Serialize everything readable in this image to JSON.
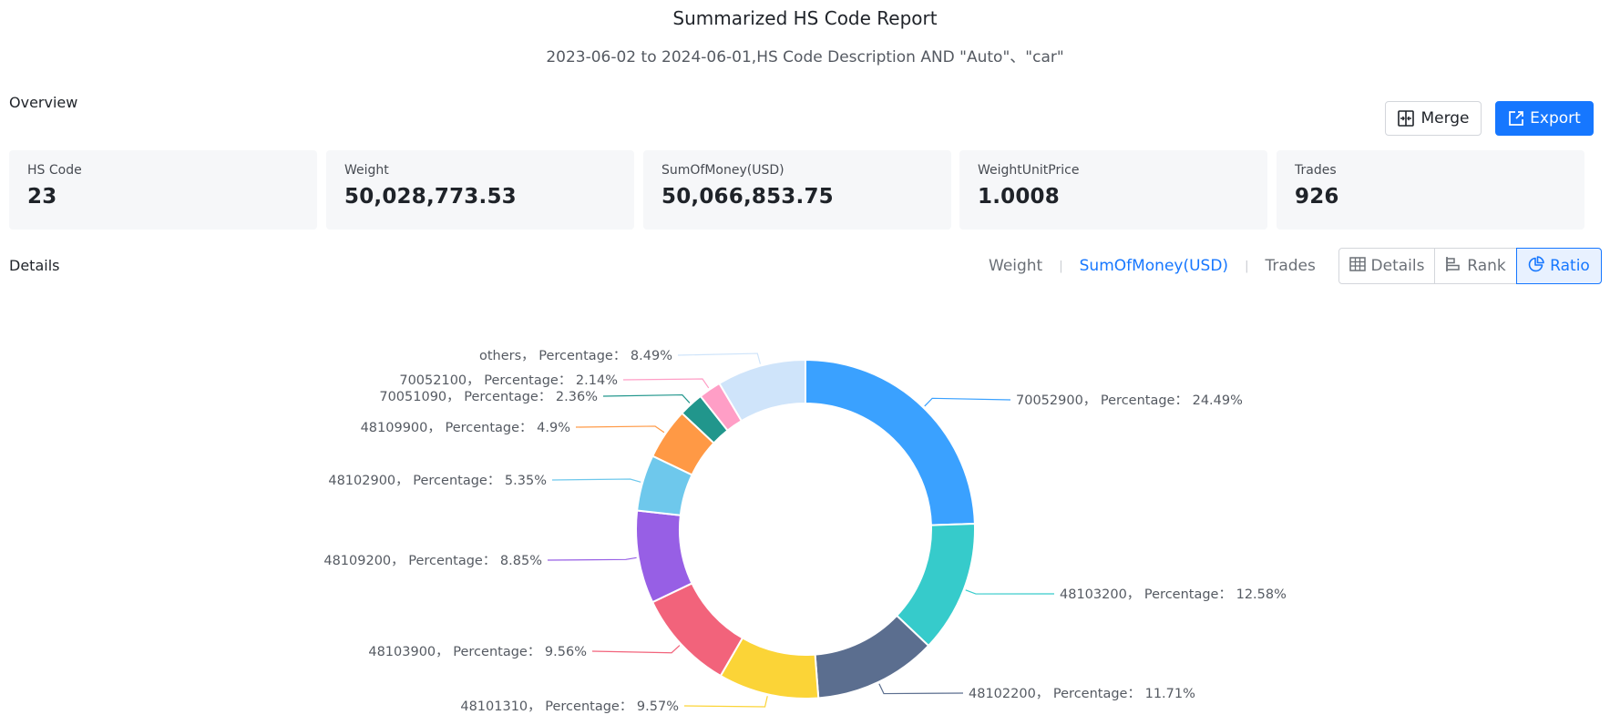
{
  "report": {
    "title": "Summarized HS Code Report",
    "subtitle": "2023-06-02 to 2024-06-01,HS Code Description AND \"Auto\"、\"car\""
  },
  "overview": {
    "label": "Overview",
    "merge_label": "Merge",
    "export_label": "Export",
    "stats": [
      {
        "label": "HS Code",
        "value": "23"
      },
      {
        "label": "Weight",
        "value": "50,028,773.53"
      },
      {
        "label": "SumOfMoney(USD)",
        "value": "50,066,853.75"
      },
      {
        "label": "WeightUnitPrice",
        "value": "1.0008"
      },
      {
        "label": "Trades",
        "value": "926"
      }
    ]
  },
  "details": {
    "label": "Details",
    "metric_tabs": [
      {
        "label": "Weight",
        "active": false
      },
      {
        "label": "SumOfMoney(USD)",
        "active": true
      },
      {
        "label": "Trades",
        "active": false
      }
    ],
    "views": [
      {
        "label": "Details",
        "icon": "table-icon",
        "active": false
      },
      {
        "label": "Rank",
        "icon": "bar-rank-icon",
        "active": false
      },
      {
        "label": "Ratio",
        "icon": "pie-icon",
        "active": true
      }
    ]
  },
  "colors": {
    "accent": "#1677ff",
    "card_bg": "#f6f7f9"
  },
  "chart_data": {
    "type": "pie",
    "variant": "donut",
    "label_format": "{name}， Percentage： {value}%",
    "slices": [
      {
        "name": "70052900",
        "value": 24.49,
        "color": "#3aa1ff"
      },
      {
        "name": "48103200",
        "value": 12.58,
        "color": "#36cbcb"
      },
      {
        "name": "48102200",
        "value": 11.71,
        "color": "#5b6e8f"
      },
      {
        "name": "48101310",
        "value": 9.57,
        "color": "#fbd437"
      },
      {
        "name": "48103900",
        "value": 9.56,
        "color": "#f2637b"
      },
      {
        "name": "48109200",
        "value": 8.85,
        "color": "#975fe5"
      },
      {
        "name": "48102900",
        "value": 5.35,
        "color": "#6ec8ec"
      },
      {
        "name": "48109900",
        "value": 4.9,
        "color": "#ff9945"
      },
      {
        "name": "70051090",
        "value": 2.36,
        "color": "#21968c"
      },
      {
        "name": "70052100",
        "value": 2.14,
        "color": "#ff9ec6"
      },
      {
        "name": "others",
        "value": 8.49,
        "color": "#cfe4fa"
      }
    ]
  }
}
